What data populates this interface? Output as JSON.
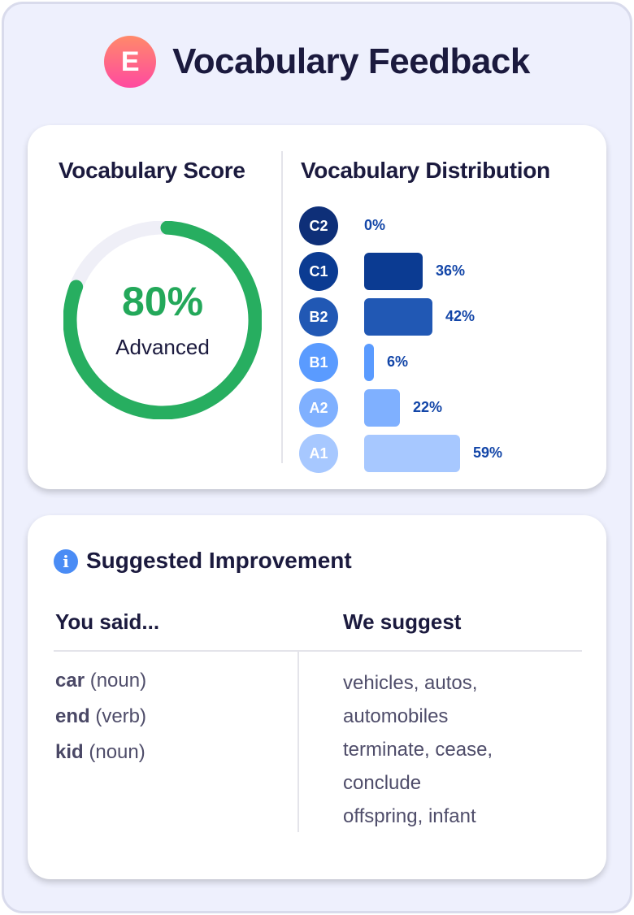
{
  "header": {
    "logo_letter": "E",
    "title": "Vocabulary Feedback"
  },
  "score": {
    "title": "Vocabulary Score",
    "percent_label": "80%",
    "value": 80,
    "level": "Advanced",
    "color": "#27ae60",
    "track_color": "#efeff7"
  },
  "distribution": {
    "title": "Vocabulary Distribution",
    "items": [
      {
        "level": "C2",
        "percent": 0,
        "label": "0%",
        "color": "#0e2f78"
      },
      {
        "level": "C1",
        "percent": 36,
        "label": "36%",
        "color": "#0b3b92"
      },
      {
        "level": "B2",
        "percent": 42,
        "label": "42%",
        "color": "#2158b4"
      },
      {
        "level": "B1",
        "percent": 6,
        "label": "6%",
        "color": "#5a9bff"
      },
      {
        "level": "A2",
        "percent": 22,
        "label": "22%",
        "color": "#7fb0ff"
      },
      {
        "level": "A1",
        "percent": 59,
        "label": "59%",
        "color": "#a7c8ff"
      }
    ]
  },
  "suggestions": {
    "title": "Suggested Improvement",
    "info_icon": "i",
    "col_said": "You said...",
    "col_suggest": "We suggest",
    "said": [
      {
        "word": "car",
        "pos": "(noun)"
      },
      {
        "word": "end",
        "pos": "(verb)"
      },
      {
        "word": "kid",
        "pos": "(noun)"
      }
    ],
    "suggest_lines": [
      "vehicles, autos,",
      "automobiles",
      "terminate, cease,",
      "conclude",
      "offspring, infant"
    ]
  }
}
